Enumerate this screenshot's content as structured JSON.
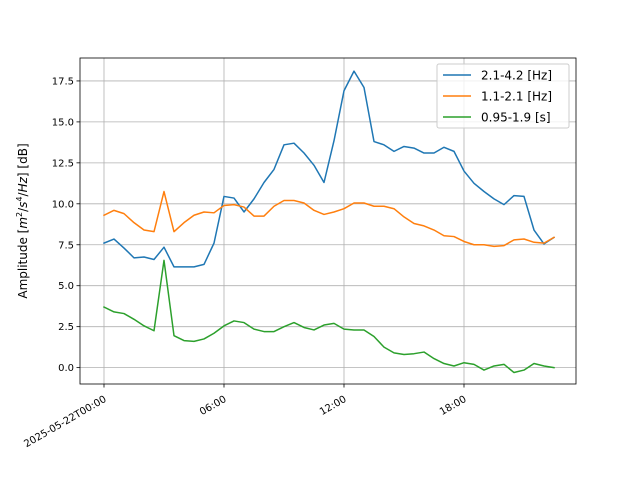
{
  "chart_data": {
    "type": "line",
    "title": "",
    "xlabel": "",
    "ylabel_parts": [
      "Amplitude [",
      "m",
      "2",
      "/",
      "s",
      "4",
      "/",
      "Hz",
      "] [dB]"
    ],
    "x_axis_type": "time",
    "x_start": "2025-05-22T00:00",
    "x_step_minutes": 30,
    "xlim_hours": [
      -1.2,
      23.6
    ],
    "ylim": [
      -1.0,
      18.9
    ],
    "x_ticks": [
      {
        "hour": 0,
        "label": "2025-05-22T00:00"
      },
      {
        "hour": 6,
        "label": "06:00"
      },
      {
        "hour": 12,
        "label": "12:00"
      },
      {
        "hour": 18,
        "label": "18:00"
      }
    ],
    "y_ticks": [
      {
        "value": 0.0,
        "label": "0.0"
      },
      {
        "value": 2.5,
        "label": "2.5"
      },
      {
        "value": 5.0,
        "label": "5.0"
      },
      {
        "value": 7.5,
        "label": "7.5"
      },
      {
        "value": 10.0,
        "label": "10.0"
      },
      {
        "value": 12.5,
        "label": "12.5"
      },
      {
        "value": 15.0,
        "label": "15.0"
      },
      {
        "value": 17.5,
        "label": "17.5"
      }
    ],
    "grid": true,
    "legend_position": "top-right",
    "series": [
      {
        "name": "2.1-4.2 [Hz]",
        "color": "#1f77b4",
        "values": [
          7.6,
          7.85,
          7.3,
          6.7,
          6.75,
          6.6,
          7.35,
          6.15,
          6.15,
          6.15,
          6.3,
          7.6,
          10.45,
          10.35,
          9.5,
          10.3,
          11.3,
          12.1,
          13.6,
          13.7,
          13.1,
          12.35,
          11.3,
          13.85,
          16.9,
          18.1,
          17.1,
          13.8,
          13.6,
          13.2,
          13.5,
          13.4,
          13.1,
          13.1,
          13.45,
          13.2,
          12.0,
          11.25,
          10.75,
          10.3,
          9.95,
          10.5,
          10.45,
          8.4,
          7.55,
          7.95
        ]
      },
      {
        "name": "1.1-2.1 [Hz]",
        "color": "#ff7f0e",
        "values": [
          9.3,
          9.6,
          9.4,
          8.85,
          8.4,
          8.3,
          10.75,
          8.3,
          8.85,
          9.3,
          9.5,
          9.45,
          9.9,
          9.95,
          9.8,
          9.25,
          9.25,
          9.85,
          10.2,
          10.2,
          10.05,
          9.6,
          9.35,
          9.5,
          9.7,
          10.05,
          10.05,
          9.85,
          9.85,
          9.7,
          9.2,
          8.8,
          8.65,
          8.4,
          8.05,
          8.0,
          7.7,
          7.5,
          7.5,
          7.4,
          7.45,
          7.8,
          7.85,
          7.65,
          7.6,
          7.95
        ]
      },
      {
        "name": "0.95-1.9 [s]",
        "color": "#2ca02c",
        "values": [
          3.7,
          3.4,
          3.3,
          2.95,
          2.55,
          2.25,
          6.55,
          1.95,
          1.65,
          1.6,
          1.75,
          2.1,
          2.55,
          2.85,
          2.75,
          2.35,
          2.2,
          2.2,
          2.5,
          2.75,
          2.45,
          2.3,
          2.6,
          2.7,
          2.35,
          2.3,
          2.3,
          1.9,
          1.25,
          0.9,
          0.8,
          0.85,
          0.95,
          0.55,
          0.25,
          0.1,
          0.3,
          0.2,
          -0.15,
          0.1,
          0.2,
          -0.3,
          -0.15,
          0.25,
          0.1,
          0.0
        ]
      }
    ]
  }
}
